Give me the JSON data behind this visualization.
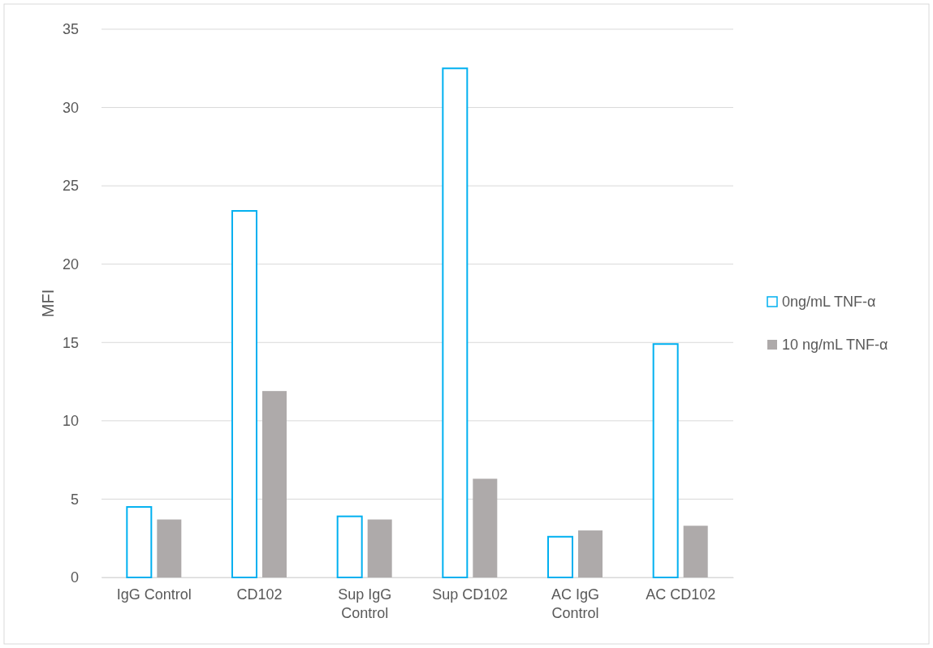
{
  "chart_data": {
    "type": "bar",
    "ylabel": "MFI",
    "categories": [
      "IgG Control",
      "CD102",
      "Sup IgG Control",
      "Sup CD102",
      "AC IgG Control",
      "AC CD102"
    ],
    "series": [
      {
        "name": "0ng/mL TNF-α",
        "color": "#00b0f0",
        "values": [
          4.5,
          23.4,
          3.9,
          32.5,
          2.6,
          14.9
        ]
      },
      {
        "name": "10 ng/mL TNF-α",
        "color": "#aeaaaa",
        "values": [
          3.7,
          11.9,
          3.7,
          6.3,
          3.0,
          3.3
        ]
      }
    ],
    "ylim": [
      0,
      35
    ],
    "yticks": [
      0,
      5,
      10,
      15,
      20,
      25,
      30,
      35
    ],
    "grid": "y",
    "legend": "right"
  }
}
